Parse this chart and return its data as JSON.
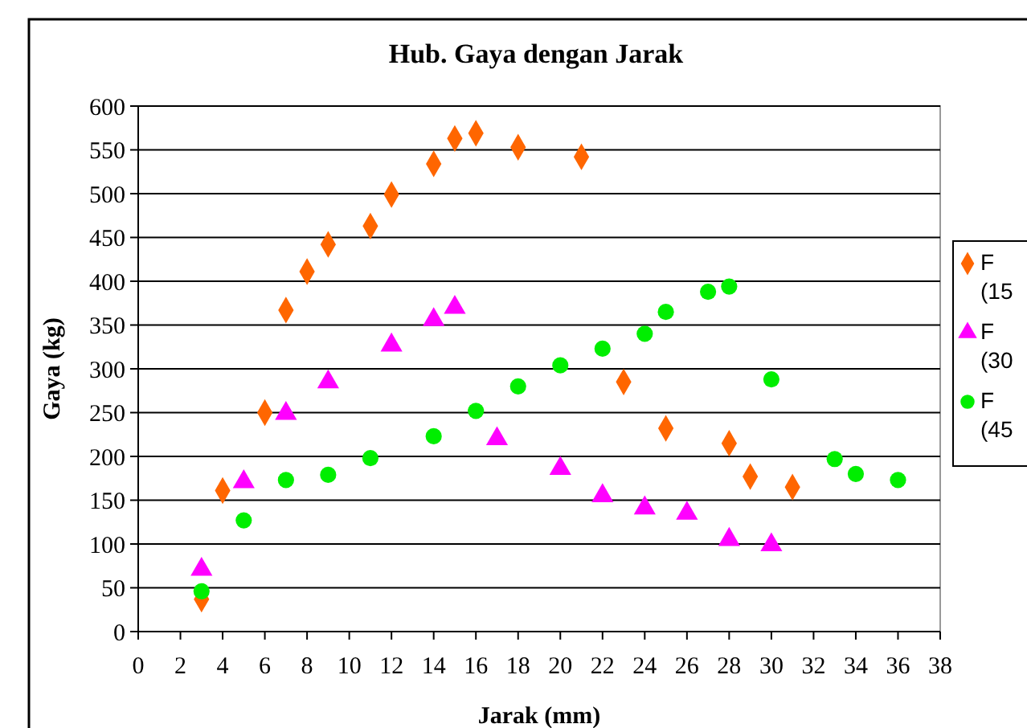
{
  "chart_data": {
    "type": "scatter",
    "title": "Hub. Gaya dengan Jarak",
    "xlabel": "Jarak (mm)",
    "ylabel": "Gaya (kg)",
    "xlim": [
      0,
      38
    ],
    "xticks": [
      0,
      2,
      4,
      6,
      8,
      10,
      12,
      14,
      16,
      18,
      20,
      22,
      24,
      26,
      28,
      30,
      32,
      34,
      36,
      38
    ],
    "ylim": [
      0,
      600
    ],
    "yticks": [
      0,
      50,
      100,
      150,
      200,
      250,
      300,
      350,
      400,
      450,
      500,
      550,
      600
    ],
    "grid": "y",
    "legend": "right",
    "series": [
      {
        "name": "F (15",
        "color": "#ff6600",
        "marker": "diamond",
        "x": [
          3,
          4,
          6,
          7,
          8,
          9,
          11,
          12,
          14,
          15,
          16,
          18,
          21,
          23,
          25,
          28,
          29,
          31
        ],
        "values": [
          37,
          161,
          250,
          367,
          411,
          442,
          463,
          499,
          534,
          563,
          569,
          553,
          542,
          285,
          232,
          215,
          177,
          165
        ]
      },
      {
        "name": "F (30",
        "color": "#ff00ff",
        "marker": "triangle",
        "x": [
          3,
          5,
          7,
          9,
          12,
          14,
          15,
          17,
          20,
          22,
          24,
          26,
          28,
          30
        ],
        "values": [
          71,
          171,
          249,
          285,
          327,
          356,
          370,
          220,
          186,
          155,
          141,
          135,
          105,
          99
        ]
      },
      {
        "name": "F (45",
        "color": "#00ee00",
        "marker": "circle",
        "x": [
          3,
          5,
          7,
          9,
          11,
          14,
          16,
          18,
          20,
          22,
          24,
          25,
          27,
          28,
          30,
          33,
          34,
          36
        ],
        "values": [
          46,
          127,
          173,
          179,
          198,
          223,
          252,
          280,
          304,
          323,
          340,
          365,
          388,
          394,
          288,
          197,
          180,
          173
        ]
      }
    ]
  }
}
